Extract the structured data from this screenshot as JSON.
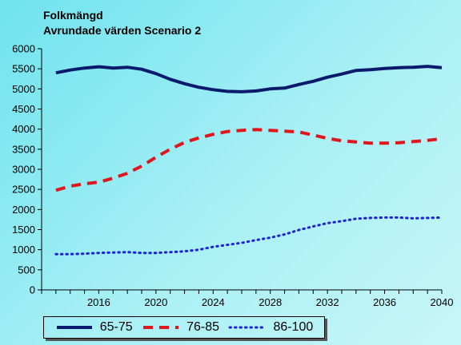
{
  "chart_data": {
    "type": "line",
    "title": "Folkmängd",
    "subtitle": "Avrundade värden Scenario 2",
    "xlabel": "",
    "ylabel": "",
    "xlim": [
      2012,
      2040
    ],
    "ylim": [
      0,
      6000
    ],
    "yticks": [
      0,
      500,
      1000,
      1500,
      2000,
      2500,
      3000,
      3500,
      4000,
      4500,
      5000,
      5500,
      6000
    ],
    "xticks": [
      2016,
      2020,
      2024,
      2028,
      2032,
      2036,
      2040
    ],
    "grid": false,
    "legend_position": "bottom",
    "x": [
      2013,
      2014,
      2015,
      2016,
      2017,
      2018,
      2019,
      2020,
      2021,
      2022,
      2023,
      2024,
      2025,
      2026,
      2027,
      2028,
      2029,
      2030,
      2031,
      2032,
      2033,
      2034,
      2035,
      2036,
      2037,
      2038,
      2039,
      2040
    ],
    "series": [
      {
        "name": "65-75",
        "color": "#0c1a6e",
        "style": "solid",
        "values": [
          5400,
          5470,
          5520,
          5550,
          5520,
          5540,
          5490,
          5380,
          5240,
          5130,
          5040,
          4980,
          4940,
          4930,
          4950,
          5000,
          5020,
          5110,
          5190,
          5290,
          5370,
          5460,
          5480,
          5510,
          5530,
          5540,
          5560,
          5530
        ]
      },
      {
        "name": "76-85",
        "color": "#e0161c",
        "style": "dashed",
        "values": [
          2480,
          2580,
          2640,
          2680,
          2780,
          2900,
          3080,
          3300,
          3500,
          3670,
          3780,
          3870,
          3940,
          3970,
          3990,
          3970,
          3950,
          3930,
          3850,
          3770,
          3710,
          3680,
          3650,
          3650,
          3660,
          3690,
          3720,
          3760
        ]
      },
      {
        "name": "86-100",
        "color": "#1c22d6",
        "style": "dotted",
        "values": [
          890,
          890,
          900,
          920,
          930,
          940,
          920,
          920,
          940,
          960,
          1000,
          1070,
          1120,
          1170,
          1240,
          1300,
          1380,
          1490,
          1580,
          1660,
          1710,
          1770,
          1790,
          1800,
          1800,
          1780,
          1790,
          1800
        ]
      }
    ]
  }
}
